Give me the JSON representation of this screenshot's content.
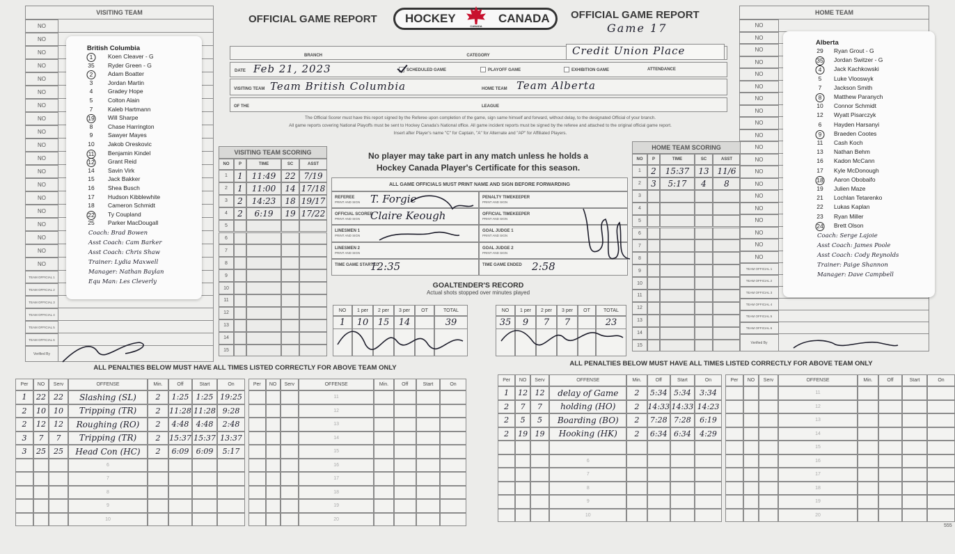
{
  "header": {
    "title_left": "OFFICIAL GAME REPORT",
    "logo_left": "HOCKEY",
    "logo_right": "CANADA",
    "logo_small": "CANADA",
    "title_right": "OFFICIAL GAME REPORT",
    "game": "Game 17"
  },
  "visiting_team": {
    "heading": "VISITING TEAM",
    "no_column": [
      "NO",
      "NO",
      "NO",
      "NO",
      "NO",
      "NO",
      "NO",
      "NO",
      "NO",
      "NO",
      "NO",
      "NO",
      "NO",
      "NO",
      "NO",
      "NO",
      "NO",
      "NO",
      "NO"
    ],
    "officials": [
      "TEAM OFFICIAL 1",
      "TEAM OFFICIAL 2",
      "TEAM OFFICIAL 3",
      "TEAM OFFICIAL 4",
      "TEAM OFFICIAL 5",
      "TEAM OFFICIAL 6"
    ],
    "verified_by": "Verified By",
    "team_name": "British Columbia",
    "players": [
      {
        "number": "1",
        "name": "Koen Cleaver - G",
        "circled": true
      },
      {
        "number": "35",
        "name": "Ryder Green - G",
        "circled": false
      },
      {
        "number": "2",
        "name": "Adam Boatter",
        "circled": true
      },
      {
        "number": "3",
        "name": "Jordan Martin",
        "circled": false
      },
      {
        "number": "4",
        "name": "Gradey Hope",
        "circled": false
      },
      {
        "number": "5",
        "name": "Colton Alain",
        "circled": false
      },
      {
        "number": "7",
        "name": "Kaleb Hartmann",
        "circled": false
      },
      {
        "number": "19",
        "name": "Will Sharpe",
        "circled": true
      },
      {
        "number": "8",
        "name": "Chase Harrington",
        "circled": false
      },
      {
        "number": "9",
        "name": "Sawyer Mayes",
        "circled": false
      },
      {
        "number": "10",
        "name": "Jakob Oreskovic",
        "circled": false
      },
      {
        "number": "11",
        "name": "Benjamin Kindel",
        "circled": true
      },
      {
        "number": "12",
        "name": "Grant Reid",
        "circled": true
      },
      {
        "number": "14",
        "name": "Savin Virk",
        "circled": false
      },
      {
        "number": "15",
        "name": "Jack Bakker",
        "circled": false
      },
      {
        "number": "16",
        "name": "Shea Busch",
        "circled": false
      },
      {
        "number": "17",
        "name": "Hudson Kibblewhite",
        "circled": false
      },
      {
        "number": "18",
        "name": "Cameron Schmidt",
        "circled": false
      },
      {
        "number": "22",
        "name": "Ty Coupland",
        "circled": true
      },
      {
        "number": "25",
        "name": "Parker MacDougall",
        "circled": false
      }
    ],
    "staff": [
      "Coach: Brad Bowen",
      "Asst Coach: Cam Barker",
      "Asst Coach: Chris Shaw",
      "Trainer: Lydia Maxwell",
      "Manager: Nathan Baylan",
      "Equ Man: Les Cleverly"
    ]
  },
  "home_team": {
    "heading": "HOME TEAM",
    "no_column": [
      "NO",
      "NO",
      "NO",
      "NO",
      "NO",
      "NO",
      "NO",
      "NO",
      "NO",
      "NO",
      "NO",
      "NO",
      "NO",
      "NO",
      "NO",
      "NO",
      "NO",
      "NO",
      "NO",
      "NO"
    ],
    "officials": [
      "TEAM OFFICIAL 1",
      "TEAM OFFICIAL 2",
      "TEAM OFFICIAL 3",
      "TEAM OFFICIAL 4",
      "TEAM OFFICIAL 5",
      "TEAM OFFICIAL 6"
    ],
    "verified_by": "Verified By",
    "team_name": "Alberta",
    "players": [
      {
        "number": "29",
        "name": "Ryan Grout - G",
        "circled": false
      },
      {
        "number": "35",
        "name": "Jordan Switzer - G",
        "circled": true
      },
      {
        "number": "4",
        "name": "Jack Kachkowski",
        "circled": true
      },
      {
        "number": "5",
        "name": "Luke Vlooswyk",
        "circled": false
      },
      {
        "number": "7",
        "name": "Jackson Smith",
        "circled": false
      },
      {
        "number": "8",
        "name": "Matthew Paranych",
        "circled": true
      },
      {
        "number": "10",
        "name": "Connor Schmidt",
        "circled": false
      },
      {
        "number": "12",
        "name": "Wyatt Pisarczyk",
        "circled": false
      },
      {
        "number": "6",
        "name": "Hayden Harsanyi",
        "circled": false
      },
      {
        "number": "9",
        "name": "Braeden Cootes",
        "circled": true
      },
      {
        "number": "11",
        "name": "Cash Koch",
        "circled": false
      },
      {
        "number": "13",
        "name": "Nathan Behm",
        "circled": false
      },
      {
        "number": "16",
        "name": "Kadon McCann",
        "circled": false
      },
      {
        "number": "17",
        "name": "Kyle McDonough",
        "circled": false
      },
      {
        "number": "18",
        "name": "Aaron Obobaifo",
        "circled": true
      },
      {
        "number": "19",
        "name": "Julien Maze",
        "circled": false
      },
      {
        "number": "21",
        "name": "Lochlan Tetarenko",
        "circled": false
      },
      {
        "number": "22",
        "name": "Lukas Kaplan",
        "circled": false
      },
      {
        "number": "23",
        "name": "Ryan Miller",
        "circled": false
      },
      {
        "number": "24",
        "name": "Brett Olson",
        "circled": true
      }
    ],
    "staff": [
      "Coach: Serge Lajoie",
      "Asst Coach: James Poole",
      "Asst Coach: Cody Reynolds",
      "Trainer: Paige Shannon",
      "Manager: Dave Campbell"
    ]
  },
  "game_info": {
    "branch_label": "BRANCH",
    "category_label": "CATEGORY",
    "venue": "Credit Union Place",
    "date_label": "DATE",
    "date": "Feb 21, 2023",
    "scheduled_game": "SCHEDULED GAME",
    "scheduled_checked": true,
    "playoff_game": "PLAYOFF GAME",
    "exhibition_game": "EXHIBITION GAME",
    "attendance_label": "ATTENDANCE",
    "visiting_team_label": "VISITING TEAM",
    "visiting_team": "Team British Columbia",
    "home_team_label": "HOME TEAM",
    "home_team": "Team Alberta",
    "of_the_label": "OF THE",
    "league_label": "LEAGUE"
  },
  "notice": [
    "The Official Scorer must have this report signed by the Referee upon completion of the game, sign same himself and forward, without delay, to the designated Official of your branch.",
    "All game reports covering National Playoffs must be sent to Hockey Canada's National office. All game incident reports must be signed by the referee and attached to the original official game report.",
    "Insert after Player's name \"C\" for Captain, \"A\" for Alternate and \"AP\" for Affiliated Players."
  ],
  "visiting_scoring": {
    "heading": "VISITING TEAM SCORING",
    "columns": [
      "NO",
      "P",
      "TIME",
      "SC",
      "ASST"
    ],
    "row_numbers": [
      "1",
      "2",
      "3",
      "4",
      "5",
      "6",
      "7",
      "8",
      "9",
      "10",
      "11",
      "12",
      "13",
      "14",
      "15"
    ],
    "goals": [
      [
        "1",
        "11:49",
        "22",
        "7/19"
      ],
      [
        "1",
        "11:00",
        "14",
        "17/18"
      ],
      [
        "2",
        "14:23",
        "18",
        "19/17"
      ],
      [
        "2",
        "6:19",
        "19",
        "17/22"
      ]
    ]
  },
  "home_scoring": {
    "heading": "HOME TEAM SCORING",
    "columns": [
      "NO",
      "P",
      "TIME",
      "SC",
      "ASST"
    ],
    "row_numbers": [
      "1",
      "2",
      "3",
      "4",
      "5",
      "6",
      "7",
      "8",
      "9",
      "10",
      "11",
      "12",
      "13",
      "14",
      "15"
    ],
    "goals": [
      [
        "2",
        "15:37",
        "13",
        "11/6"
      ],
      [
        "3",
        "5:17",
        "4",
        "8"
      ]
    ]
  },
  "certificate_notice": [
    "No player may take part in any match unless he holds a",
    "Hockey Canada Player's Certificate for this season."
  ],
  "officials": {
    "heading": "ALL GAME OFFICIALS MUST PRINT NAME AND SIGN BEFORE FORWARDING",
    "left": [
      {
        "label": "REFEREE",
        "sub": "PRINT AND SIGN",
        "value": "T. Forgie"
      },
      {
        "label": "OFFICIAL SCORER",
        "sub": "PRINT AND SIGN",
        "value": "Claire Keough"
      },
      {
        "label": "LINESMEN 1",
        "sub": "PRINT AND SIGN"
      },
      {
        "label": "LINESMEN 2",
        "sub": "PRINT AND SIGN"
      },
      {
        "label": "TIME GAME STARTED",
        "value": "12:35"
      }
    ],
    "right": [
      {
        "label": "PENALTY TIMEKEEPER",
        "sub": "PRINT AND SIGN"
      },
      {
        "label": "OFFICIAL TIMEKEEPER",
        "sub": "PRINT AND SIGN"
      },
      {
        "label": "GOAL JUDGE 1",
        "sub": "PRINT AND SIGN"
      },
      {
        "label": "GOAL JUDGE 2",
        "sub": "PRINT AND SIGN"
      },
      {
        "label": "TIME GAME ENDED",
        "value": "2:58"
      }
    ]
  },
  "goaltender_record": {
    "title": "GOALTENDER'S RECORD",
    "subtitle": "Actual shots stopped over minutes played",
    "columns": [
      "NO",
      "1 per",
      "2 per",
      "3 per",
      "OT",
      "TOTAL"
    ],
    "visiting": {
      "no": "1",
      "periods": [
        "10",
        "15",
        "14"
      ],
      "total": "39"
    },
    "home": {
      "no": "35",
      "periods": [
        "9",
        "7",
        "7"
      ],
      "total": "23"
    }
  },
  "penalties": {
    "heading": "ALL PENALTIES BELOW MUST HAVE ALL TIMES LISTED CORRECTLY FOR ABOVE TEAM ONLY",
    "columns": [
      "Per",
      "NO",
      "Serv",
      "OFFENSE",
      "Min.",
      "Off",
      "Start",
      "On"
    ],
    "row_numbers_first": [
      "6",
      "7",
      "8",
      "9",
      "10"
    ],
    "row_numbers_second": [
      "11",
      "12",
      "13",
      "14",
      "15",
      "16",
      "17",
      "18",
      "19",
      "20"
    ],
    "visiting": [
      [
        "1",
        "22",
        "22",
        "Slashing (SL)",
        "2",
        "1:25",
        "1:25",
        "19:25"
      ],
      [
        "2",
        "10",
        "10",
        "Tripping (TR)",
        "2",
        "11:28",
        "11:28",
        "9:28"
      ],
      [
        "2",
        "12",
        "12",
        "Roughing (RO)",
        "2",
        "4:48",
        "4:48",
        "2:48"
      ],
      [
        "3",
        "7",
        "7",
        "Tripping (TR)",
        "2",
        "15:37",
        "15:37",
        "13:37"
      ],
      [
        "3",
        "25",
        "25",
        "Head Con (HC)",
        "2",
        "6:09",
        "6:09",
        "5:17"
      ]
    ],
    "home": [
      [
        "1",
        "12",
        "12",
        "delay of Game",
        "2",
        "5:34",
        "5:34",
        "3:34"
      ],
      [
        "2",
        "7",
        "7",
        "holding (HO)",
        "2",
        "14:33",
        "14:33",
        "14:23"
      ],
      [
        "2",
        "5",
        "5",
        "Boarding (BO)",
        "2",
        "7:28",
        "7:28",
        "6:19"
      ],
      [
        "2",
        "19",
        "19",
        "Hooking (HK)",
        "2",
        "6:34",
        "6:34",
        "4:29"
      ]
    ]
  },
  "footer_number": "555"
}
